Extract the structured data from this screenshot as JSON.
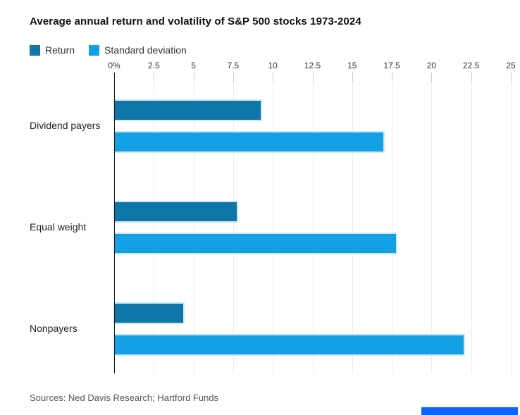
{
  "title": "Average annual return and volatility of S&P 500 stocks 1973-2024",
  "source": "Sources: Ned Davis Research; Hartford Funds",
  "colors": {
    "return_blue": "#0e76a8",
    "std_dev_blue": "#14a0e4",
    "bar_halo": "#cde9f8",
    "axis": "#1a1a1a",
    "tick_stub": "#c9c9c9",
    "gridline": "#ececec",
    "title_text": "#111111",
    "tick_text": "#333333",
    "category_text": "#222222",
    "source_text": "#555555",
    "bottom_strip_blue": "#0f62fe"
  },
  "chart_data": {
    "type": "bar",
    "orientation": "horizontal",
    "title": "Average annual return and volatility of S&P 500 stocks 1973-2024",
    "categories": [
      "Dividend payers",
      "Equal weight",
      "Nonpayers"
    ],
    "series": [
      {
        "name": "Return",
        "values": [
          9.2,
          7.7,
          4.3
        ],
        "color": "#0e76a8"
      },
      {
        "name": "Standard deviation",
        "values": [
          16.9,
          17.7,
          22.0
        ],
        "color": "#14a0e4"
      }
    ],
    "x_ticks": [
      "0%",
      "2.5",
      "5",
      "7.5",
      "10",
      "12.5",
      "15",
      "17.5",
      "20",
      "22.5",
      "25"
    ],
    "x_tick_values": [
      0,
      2.5,
      5,
      7.5,
      10,
      12.5,
      15,
      17.5,
      20,
      22.5,
      25
    ],
    "xlim": [
      0,
      25
    ],
    "unit": "percent",
    "grid": true,
    "legend_position": "top-left"
  }
}
